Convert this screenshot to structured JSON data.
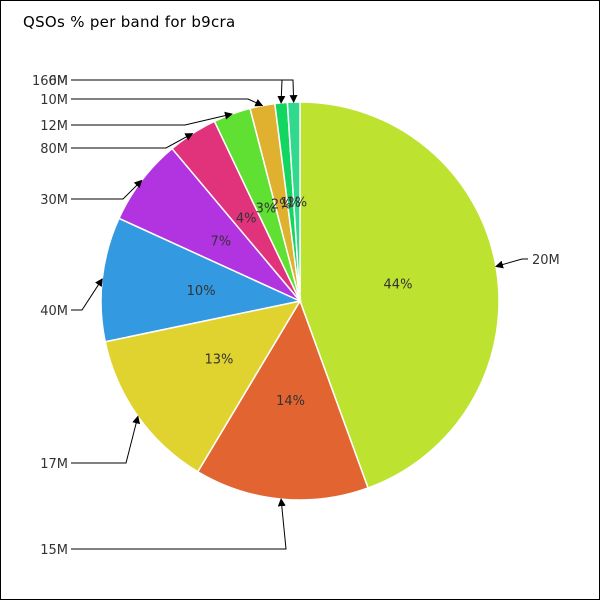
{
  "chart_data": {
    "type": "pie",
    "title": "QSOs % per band for b9cra",
    "slices": [
      {
        "label": "20M",
        "value": 44,
        "pct_label": "44%",
        "color": "#bde22f"
      },
      {
        "label": "15M",
        "value": 14,
        "pct_label": "14%",
        "color": "#e26531"
      },
      {
        "label": "17M",
        "value": 13,
        "pct_label": "13%",
        "color": "#e1d32f"
      },
      {
        "label": "40M",
        "value": 10,
        "pct_label": "10%",
        "color": "#3399e0"
      },
      {
        "label": "30M",
        "value": 7,
        "pct_label": "7%",
        "color": "#b233e0"
      },
      {
        "label": "80M",
        "value": 4,
        "pct_label": "4%",
        "color": "#e0337b"
      },
      {
        "label": "12M",
        "value": 3,
        "pct_label": "3%",
        "color": "#5fe033"
      },
      {
        "label": "10M",
        "value": 2,
        "pct_label": "2%",
        "color": "#e0b12f"
      },
      {
        "label": "160M",
        "value": 1,
        "pct_label": "1%",
        "color": "#12d65f"
      },
      {
        "label": "6M",
        "value": 1,
        "pct_label": "1%",
        "color": "#30d98c"
      }
    ]
  }
}
